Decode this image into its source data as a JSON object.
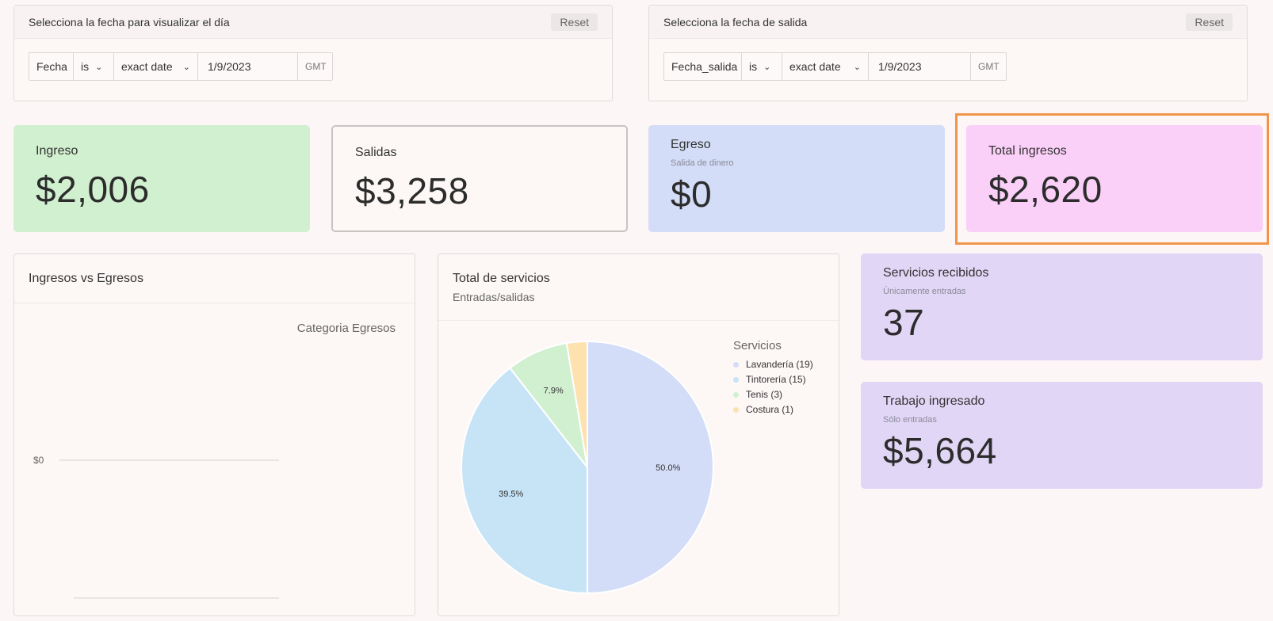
{
  "filters": {
    "day": {
      "title": "Selecciona la fecha para visualizar el día",
      "reset": "Reset",
      "field": "Fecha",
      "operator": "is",
      "mode": "exact date",
      "date": "1/9/2023",
      "tz": "GMT"
    },
    "departure": {
      "title": "Selecciona la fecha de salida",
      "reset": "Reset",
      "field": "Fecha_salida",
      "operator": "is",
      "mode": "exact date",
      "date": "1/9/2023",
      "tz": "GMT"
    }
  },
  "kpis": {
    "ingreso": {
      "title": "Ingreso",
      "value": "$2,006",
      "color": "#d1f0d0"
    },
    "salidas": {
      "title": "Salidas",
      "value": "$3,258",
      "color": "#fdf7f6"
    },
    "egreso": {
      "title": "Egreso",
      "subtitle": "Salida de dinero",
      "value": "$0",
      "color": "#d3ddf7"
    },
    "total": {
      "title": "Total ingresos",
      "value": "$2,620",
      "color": "#facff8"
    },
    "servicios_recibidos": {
      "title": "Servicios recibidos",
      "subtitle": "Únicamente entradas",
      "value": "37",
      "color": "#e2d6f6"
    },
    "trabajo_ingresado": {
      "title": "Trabajo ingresado",
      "subtitle": "Sólo entradas",
      "value": "$5,664",
      "color": "#e2d6f6"
    }
  },
  "highlight_color": "#f0954a",
  "ingresos_chart": {
    "title": "Ingresos vs Egresos",
    "legend_title": "Categoria Egresos"
  },
  "servicios_chart": {
    "title": "Total de servicios",
    "subtitle": "Entradas/salidas",
    "legend_title": "Servicios"
  },
  "chart_data": [
    {
      "type": "bar",
      "title": "Ingresos vs Egresos",
      "legend_title": "Categoria Egresos",
      "y_tick_labels": [
        "$0"
      ],
      "series": []
    },
    {
      "type": "pie",
      "title": "Total de servicios",
      "subtitle": "Entradas/salidas",
      "legend_title": "Servicios",
      "slices": [
        {
          "label": "Lavandería (19)",
          "value": 19,
          "percent_label": "50.0%",
          "color": "#d3ddf7"
        },
        {
          "label": "Tintorería (15)",
          "value": 15,
          "percent_label": "39.5%",
          "color": "#c7e4f7"
        },
        {
          "label": "Tenis (3)",
          "value": 3,
          "percent_label": "7.9%",
          "color": "#d1f0d0"
        },
        {
          "label": "Costura (1)",
          "value": 1,
          "percent_label": "",
          "color": "#fde2b0"
        }
      ]
    }
  ]
}
